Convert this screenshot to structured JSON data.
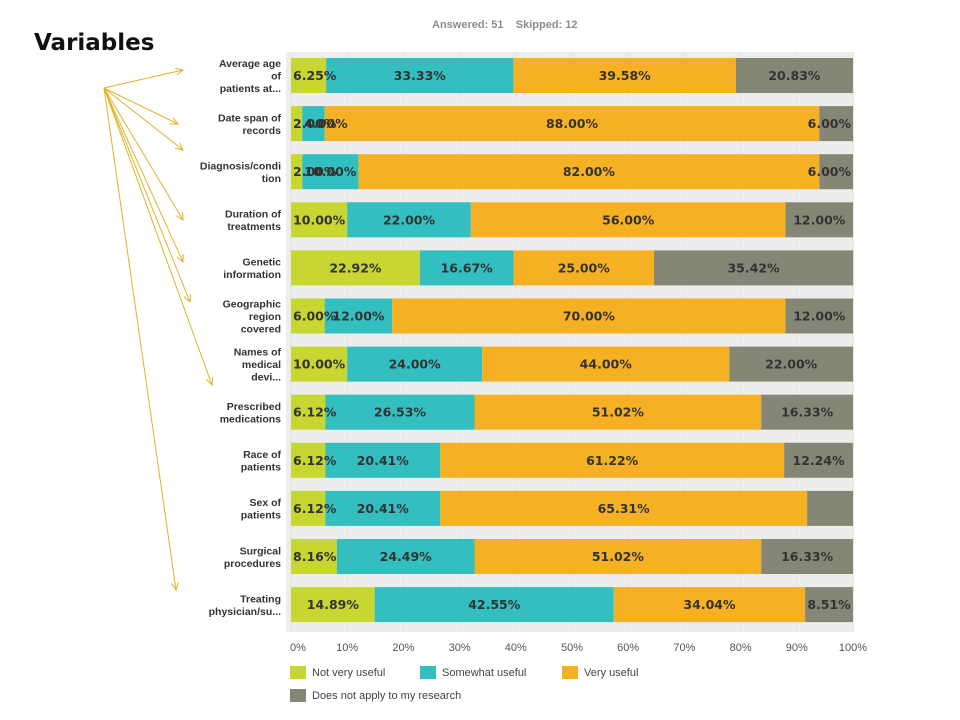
{
  "annotation": "Variables",
  "summary": {
    "answered": "Answered: 51",
    "skipped": "Skipped: 12"
  },
  "chart_data": {
    "type": "bar",
    "orientation": "horizontal",
    "stacked": true,
    "title": "",
    "xlabel": "",
    "ylabel": "",
    "xlim": [
      0,
      100
    ],
    "x_ticks": [
      "0%",
      "10%",
      "20%",
      "30%",
      "40%",
      "50%",
      "60%",
      "70%",
      "80%",
      "90%",
      "100%"
    ],
    "legend_position": "bottom",
    "categories": [
      [
        "Average age",
        "of",
        "patients at..."
      ],
      [
        "Date span of",
        "records"
      ],
      [
        "Diagnosis/condi",
        "tion"
      ],
      [
        "Duration of",
        "treatments"
      ],
      [
        "Genetic",
        "information"
      ],
      [
        "Geographic",
        "region",
        "covered"
      ],
      [
        "Names of",
        "medical",
        "devi..."
      ],
      [
        "Prescribed",
        "medications"
      ],
      [
        "Race of",
        "patients"
      ],
      [
        "Sex of",
        "patients"
      ],
      [
        "Surgical",
        "procedures"
      ],
      [
        "Treating",
        "physician/su..."
      ]
    ],
    "series": [
      {
        "name": "Not very useful",
        "color": "#c8d631",
        "values": [
          6.25,
          2.0,
          2.0,
          10.0,
          22.92,
          6.0,
          10.0,
          6.12,
          6.12,
          6.12,
          8.16,
          14.89
        ],
        "labels": [
          "6.25%",
          "2.00%",
          "2.00%",
          "10.00%",
          "22.92%",
          "6.00%",
          "10.00%",
          "6.12%",
          "6.12%",
          "6.12%",
          "8.16%",
          "14.89%"
        ]
      },
      {
        "name": "Somewhat useful",
        "color": "#33bfbf",
        "values": [
          33.33,
          4.0,
          10.0,
          22.0,
          16.67,
          12.0,
          24.0,
          26.53,
          20.41,
          20.41,
          24.49,
          42.55
        ],
        "labels": [
          "33.33%",
          "4.00%",
          "10.00%",
          "22.00%",
          "16.67%",
          "12.00%",
          "24.00%",
          "26.53%",
          "20.41%",
          "20.41%",
          "24.49%",
          "42.55%"
        ]
      },
      {
        "name": "Very useful",
        "color": "#f5b023",
        "values": [
          39.58,
          88.0,
          82.0,
          56.0,
          25.0,
          70.0,
          44.0,
          51.02,
          61.22,
          65.31,
          51.02,
          34.04
        ],
        "labels": [
          "39.58%",
          "88.00%",
          "82.00%",
          "56.00%",
          "25.00%",
          "70.00%",
          "44.00%",
          "51.02%",
          "61.22%",
          "65.31%",
          "51.02%",
          "34.04%"
        ]
      },
      {
        "name": "Does not apply to my research",
        "color": "#868676",
        "values": [
          20.83,
          6.0,
          6.0,
          12.0,
          35.42,
          12.0,
          22.0,
          16.33,
          12.24,
          8.16,
          16.33,
          8.51
        ],
        "labels": [
          "20.83%",
          "6.00%",
          "6.00%",
          "12.00%",
          "35.42%",
          "12.00%",
          "22.00%",
          "16.33%",
          "12.24%",
          "",
          "16.33%",
          "8.51%"
        ]
      }
    ]
  }
}
